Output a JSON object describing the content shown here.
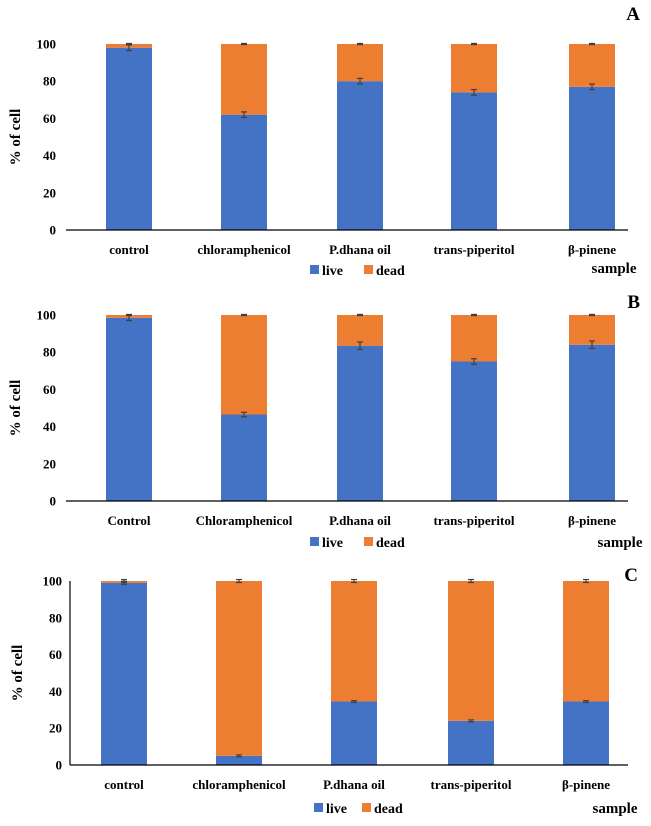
{
  "colors": {
    "live": "#4472C4",
    "dead": "#ED7D31",
    "axis": "#000000",
    "error_bar": "#404040"
  },
  "chart_data": [
    {
      "panel_label": "A",
      "type": "bar",
      "stacked": true,
      "ylabel": "% of cell",
      "xlabel": "sample",
      "ylim": [
        0,
        100
      ],
      "yticks": [
        0,
        20,
        40,
        60,
        80,
        100
      ],
      "categories": [
        "control",
        "chloramphenicol",
        "P.dhana oil",
        "trans-piperitol",
        "β-pinene"
      ],
      "series": [
        {
          "name": "live",
          "values": [
            98,
            62,
            80,
            74,
            77
          ],
          "errors": [
            1.5,
            1.5,
            1.5,
            1.5,
            1.5
          ]
        },
        {
          "name": "dead",
          "values": [
            2,
            38,
            20,
            26,
            23
          ],
          "errors": [
            0.3,
            0.3,
            0.3,
            0.3,
            0.3
          ]
        }
      ],
      "legend": [
        "live",
        "dead"
      ]
    },
    {
      "panel_label": "B",
      "type": "bar",
      "stacked": true,
      "ylabel": "% of cell",
      "xlabel": "sample",
      "ylim": [
        0,
        100
      ],
      "yticks": [
        0,
        20,
        40,
        60,
        80,
        100
      ],
      "categories": [
        "Control",
        "Chloramphenicol",
        "P.dhana oil",
        "trans-piperitol",
        "β-pinene"
      ],
      "series": [
        {
          "name": "live",
          "values": [
            98.5,
            46.5,
            83.5,
            75,
            84
          ],
          "errors": [
            1.5,
            1.2,
            2.0,
            1.5,
            2.0
          ]
        },
        {
          "name": "dead",
          "values": [
            1.5,
            53.5,
            16.5,
            25,
            16
          ],
          "errors": [
            0.3,
            0.3,
            0.3,
            0.3,
            0.3
          ]
        }
      ],
      "legend": [
        "live",
        "dead"
      ]
    },
    {
      "panel_label": "C",
      "type": "bar",
      "stacked": true,
      "ylabel": "% of cell",
      "xlabel": "sample",
      "ylim": [
        0,
        100
      ],
      "yticks": [
        0,
        20,
        40,
        60,
        80,
        100
      ],
      "categories": [
        "control",
        "chloramphenicol",
        "P.dhana oil",
        "trans-piperitol",
        "β-pinene"
      ],
      "series": [
        {
          "name": "live",
          "values": [
            99,
            5,
            34.5,
            24,
            34.5
          ],
          "errors": [
            0.8,
            0.5,
            0.5,
            0.5,
            0.5
          ]
        },
        {
          "name": "dead",
          "values": [
            1,
            95,
            65.5,
            76,
            65.5
          ],
          "errors": [
            0.8,
            0.8,
            0.8,
            0.8,
            0.8
          ]
        }
      ],
      "legend": [
        "live",
        "dead"
      ]
    }
  ]
}
